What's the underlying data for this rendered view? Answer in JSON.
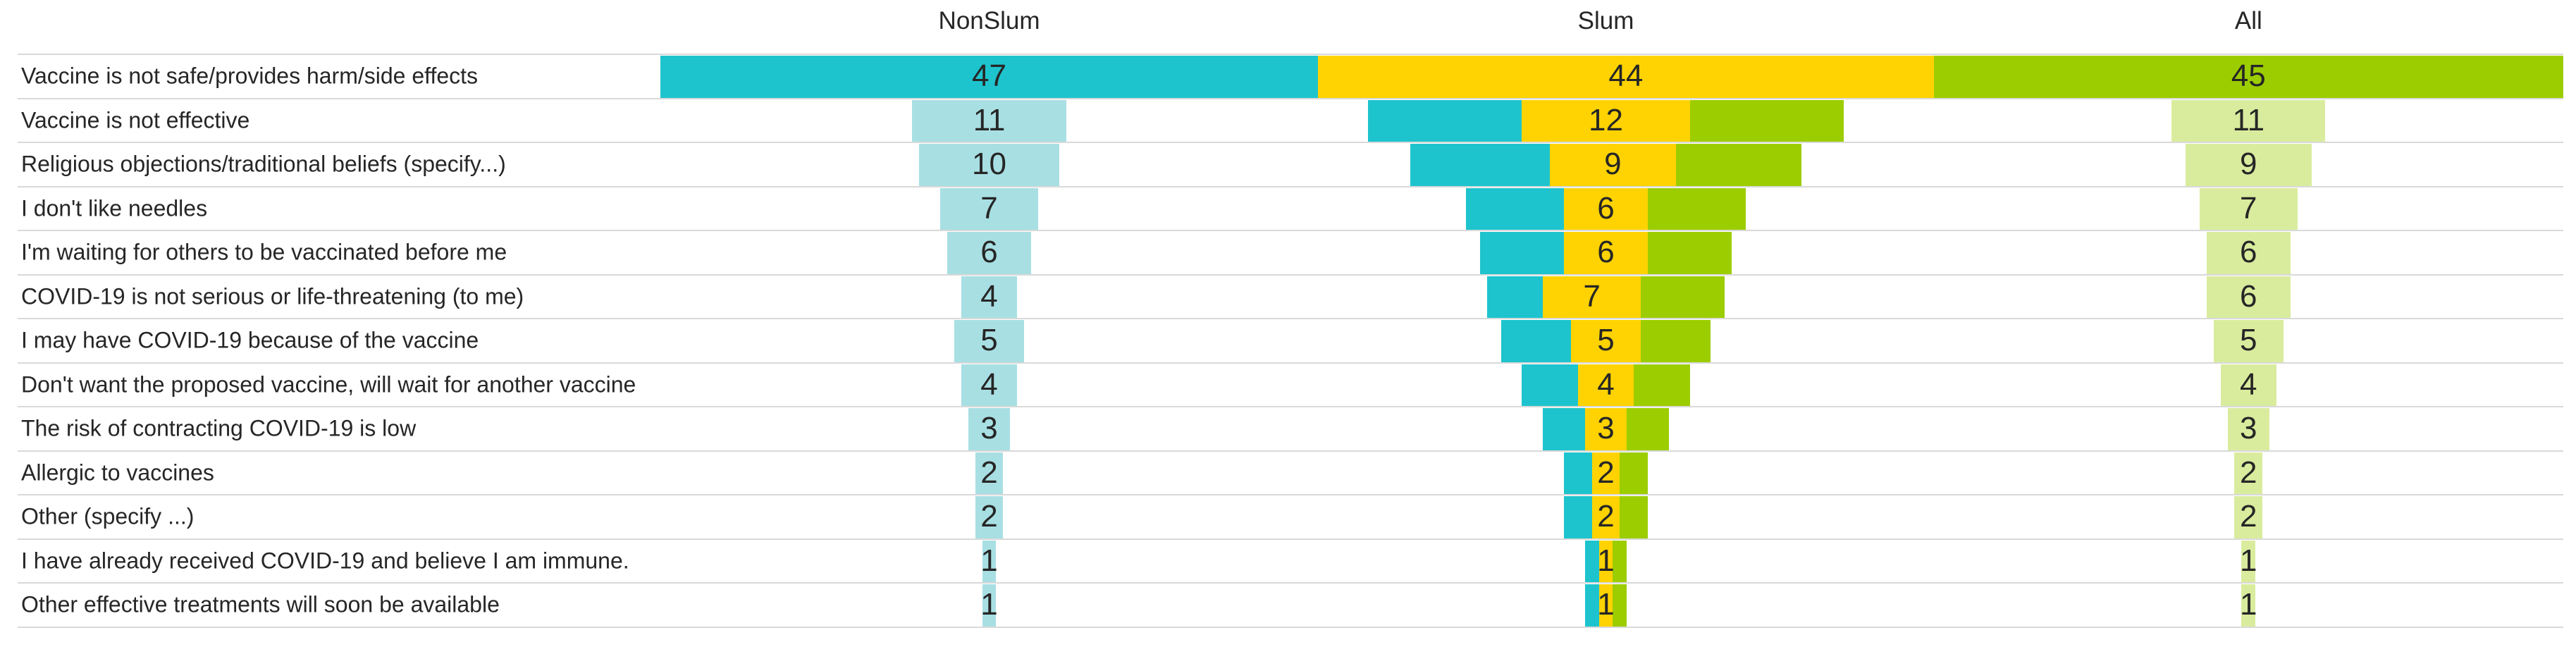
{
  "chart_data": {
    "type": "bar",
    "subtype": "centered-funnel-comparison",
    "title": "",
    "columns": [
      "NonSlum",
      "Slum",
      "All"
    ],
    "categories": [
      "Vaccine is not safe/provides harm/side effects",
      "Vaccine is not effective",
      "Religious objections/traditional beliefs (specify...)",
      "I don't like needles",
      "I'm waiting for others to be vaccinated before me",
      "COVID-19 is not serious or life-threatening (to me)",
      "I may have COVID-19 because of the vaccine",
      "Don't want the proposed vaccine, will wait for another vaccine",
      "The risk of contracting COVID-19 is low",
      "Allergic to vaccines",
      "Other (specify ...)",
      "I have already received COVID-19 and believe I am immune.",
      "Other effective treatments will soon be available"
    ],
    "series": [
      {
        "name": "NonSlum",
        "values": [
          47,
          11,
          10,
          7,
          6,
          4,
          5,
          4,
          3,
          2,
          2,
          1,
          1
        ]
      },
      {
        "name": "Slum",
        "values": [
          44,
          12,
          9,
          6,
          6,
          7,
          5,
          4,
          3,
          2,
          2,
          1,
          1
        ]
      },
      {
        "name": "All",
        "values": [
          45,
          11,
          9,
          7,
          6,
          6,
          5,
          4,
          3,
          2,
          2,
          1,
          1
        ]
      }
    ],
    "colors": {
      "nonslum_stack": "#1EC4CD",
      "nonslum_funnel": "#A8DFE3",
      "slum": "#FED301",
      "all_stack": "#9CCD00",
      "all_funnel": "#D9EC9E",
      "text": "#262626",
      "gridline": "#D9D9D9"
    },
    "layout": {
      "legend": false,
      "gridlines": "horizontal",
      "value_labels": "inside-bars",
      "first_row_full_width_stack": true,
      "funnel_alignment": "centered-per-column"
    }
  }
}
